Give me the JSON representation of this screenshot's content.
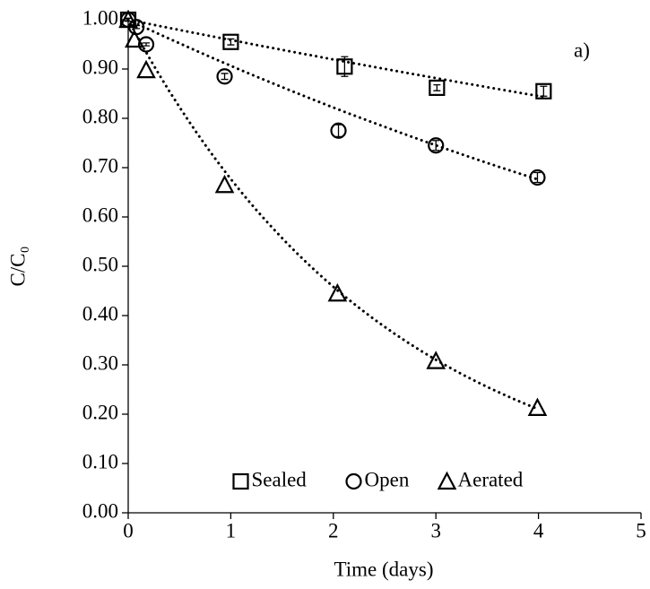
{
  "chart_data": {
    "type": "scatter",
    "xlabel": "Time (days)",
    "ylabel": "C/C₀",
    "annotation": "a)",
    "xlim": [
      0,
      5
    ],
    "xticks": [
      0,
      1,
      2,
      3,
      4,
      5
    ],
    "ylim": [
      0,
      1
    ],
    "yticks": [
      {
        "value": 0,
        "label": "0.00"
      },
      {
        "value": 0.1,
        "label": "0.10"
      },
      {
        "value": 0.2,
        "label": "0.20"
      },
      {
        "value": 0.3,
        "label": "0.30"
      },
      {
        "value": 0.4,
        "label": "0.40"
      },
      {
        "value": 0.5,
        "label": "0.50"
      },
      {
        "value": 0.6,
        "label": "0.60"
      },
      {
        "value": 0.7,
        "label": "0.70"
      },
      {
        "value": 0.8,
        "label": "0.80"
      },
      {
        "value": 0.9,
        "label": "0.90"
      },
      {
        "value": 1,
        "label": "1.00"
      }
    ],
    "grid": false,
    "legend": "bottom",
    "series": [
      {
        "name": "Sealed",
        "marker": "square",
        "color": "#000000",
        "x": [
          0,
          1,
          2.11,
          3.01,
          4.05
        ],
        "values": [
          1.0,
          0.955,
          0.905,
          0.862,
          0.855
        ],
        "errors": [
          0.003,
          0.006,
          0.02,
          0.006,
          0.01
        ],
        "trendline": {
          "type": "exponential",
          "k": 0.042
        }
      },
      {
        "name": "Open",
        "marker": "circle",
        "color": "#000000",
        "x": [
          0,
          0.08,
          0.175,
          0.94,
          2.05,
          3.0,
          3.99
        ],
        "values": [
          1.0,
          0.985,
          0.95,
          0.885,
          0.775,
          0.745,
          0.68
        ],
        "errors": [
          0.003,
          0.003,
          0.003,
          0.006,
          0.012,
          0.01,
          0.01
        ],
        "trendline": {
          "type": "exponential",
          "k": 0.098
        }
      },
      {
        "name": "Aerated",
        "marker": "triangle",
        "color": "#000000",
        "x": [
          0,
          0.06,
          0.175,
          0.94,
          2.04,
          3.0,
          3.99
        ],
        "values": [
          1.0,
          0.96,
          0.898,
          0.665,
          0.445,
          0.308,
          0.213
        ],
        "trendline": {
          "type": "exponential",
          "k": 0.39
        }
      }
    ]
  }
}
